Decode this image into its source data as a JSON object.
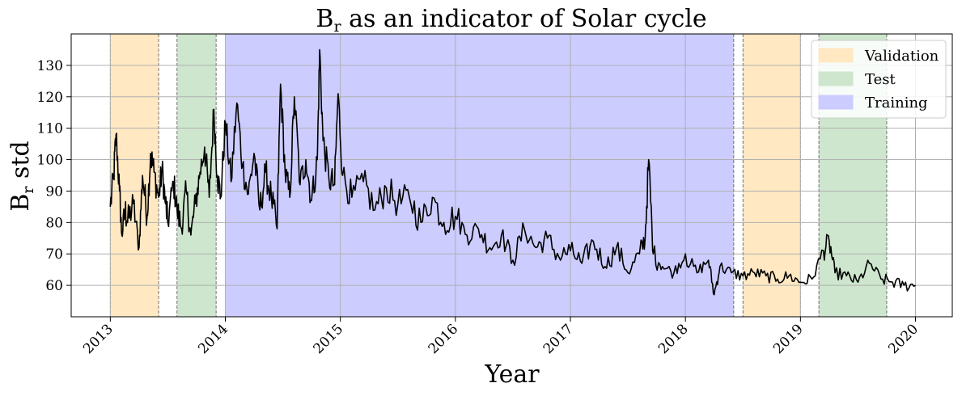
{
  "chart_data": {
    "type": "line",
    "title": "B",
    "title_subscript": "r",
    "title_rest": " as an indicator of Solar cycle",
    "xlabel": "Year",
    "ylabel": "B",
    "ylabel_subscript": "r",
    "ylabel_rest": " std",
    "xlim": [
      2012.66,
      2020.32
    ],
    "ylim": [
      50,
      140
    ],
    "xticks": [
      2013,
      2014,
      2015,
      2016,
      2017,
      2018,
      2019,
      2020
    ],
    "xtick_labels": [
      "2013",
      "2014",
      "2015",
      "2016",
      "2017",
      "2018",
      "2019",
      "2020"
    ],
    "yticks": [
      60,
      70,
      80,
      90,
      100,
      110,
      120,
      130
    ],
    "ytick_labels": [
      "60",
      "70",
      "80",
      "90",
      "100",
      "110",
      "120",
      "130"
    ],
    "grid": true,
    "legend_position": "top-right",
    "legend": [
      {
        "label": "Validation",
        "color": "#ffe8c2"
      },
      {
        "label": "Test",
        "color": "#cde6cd"
      },
      {
        "label": "Training",
        "color": "#ccccff"
      }
    ],
    "regions": [
      {
        "name": "Validation",
        "start": 2013.0,
        "end": 2013.42,
        "color": "#ffe8c2"
      },
      {
        "name": "Test",
        "start": 2013.58,
        "end": 2013.92,
        "color": "#cde6cd"
      },
      {
        "name": "Training",
        "start": 2014.0,
        "end": 2018.42,
        "color": "#ccccff"
      },
      {
        "name": "Validation",
        "start": 2018.5,
        "end": 2019.0,
        "color": "#ffe8c2"
      },
      {
        "name": "Test",
        "start": 2019.16,
        "end": 2019.75,
        "color": "#cde6cd"
      }
    ],
    "series": [
      {
        "name": "Br std",
        "color": "#000000",
        "x": [
          2013.0,
          2013.03,
          2013.05,
          2013.08,
          2013.1,
          2013.13,
          2013.15,
          2013.2,
          2013.25,
          2013.28,
          2013.32,
          2013.35,
          2013.38,
          2013.42,
          2013.45,
          2013.48,
          2013.5,
          2013.55,
          2013.58,
          2013.62,
          2013.66,
          2013.7,
          2013.74,
          2013.78,
          2013.82,
          2013.86,
          2013.9,
          2013.93,
          2013.96,
          2014.0,
          2014.05,
          2014.1,
          2014.15,
          2014.2,
          2014.25,
          2014.3,
          2014.35,
          2014.4,
          2014.45,
          2014.48,
          2014.52,
          2014.56,
          2014.6,
          2014.65,
          2014.7,
          2014.75,
          2014.8,
          2014.82,
          2014.85,
          2014.9,
          2014.95,
          2014.98,
          2015.02,
          2015.1,
          2015.2,
          2015.3,
          2015.4,
          2015.5,
          2015.6,
          2015.7,
          2015.8,
          2015.9,
          2016.0,
          2016.1,
          2016.2,
          2016.3,
          2016.4,
          2016.5,
          2016.6,
          2016.7,
          2016.8,
          2016.9,
          2017.0,
          2017.1,
          2017.2,
          2017.3,
          2017.4,
          2017.5,
          2017.6,
          2017.65,
          2017.68,
          2017.72,
          2017.8,
          2017.9,
          2018.0,
          2018.1,
          2018.2,
          2018.25,
          2018.3,
          2018.4,
          2018.5,
          2018.6,
          2018.7,
          2018.8,
          2018.9,
          2019.0,
          2019.1,
          2019.2,
          2019.25,
          2019.3,
          2019.4,
          2019.5,
          2019.6,
          2019.7,
          2019.8,
          2019.9,
          2020.0
        ],
        "y": [
          85,
          95,
          108,
          90,
          76,
          84,
          80,
          86,
          72,
          95,
          82,
          102,
          96,
          88,
          97,
          86,
          80,
          93,
          84,
          78,
          90,
          76,
          86,
          96,
          104,
          88,
          116,
          95,
          88,
          112,
          93,
          118,
          98,
          89,
          102,
          84,
          96,
          88,
          78,
          124,
          96,
          88,
          120,
          92,
          100,
          87,
          100,
          135,
          106,
          94,
          92,
          121,
          95,
          88,
          93,
          84,
          91,
          86,
          88,
          80,
          88,
          80,
          82,
          76,
          78,
          72,
          76,
          68,
          78,
          72,
          75,
          69,
          71,
          67,
          74,
          66,
          72,
          64,
          70,
          75,
          100,
          70,
          66,
          64,
          70,
          64,
          68,
          57,
          66,
          64,
          63,
          64,
          63,
          62,
          63,
          61,
          62,
          71,
          74,
          64,
          63,
          61,
          67,
          62,
          61,
          60,
          60
        ]
      }
    ]
  }
}
